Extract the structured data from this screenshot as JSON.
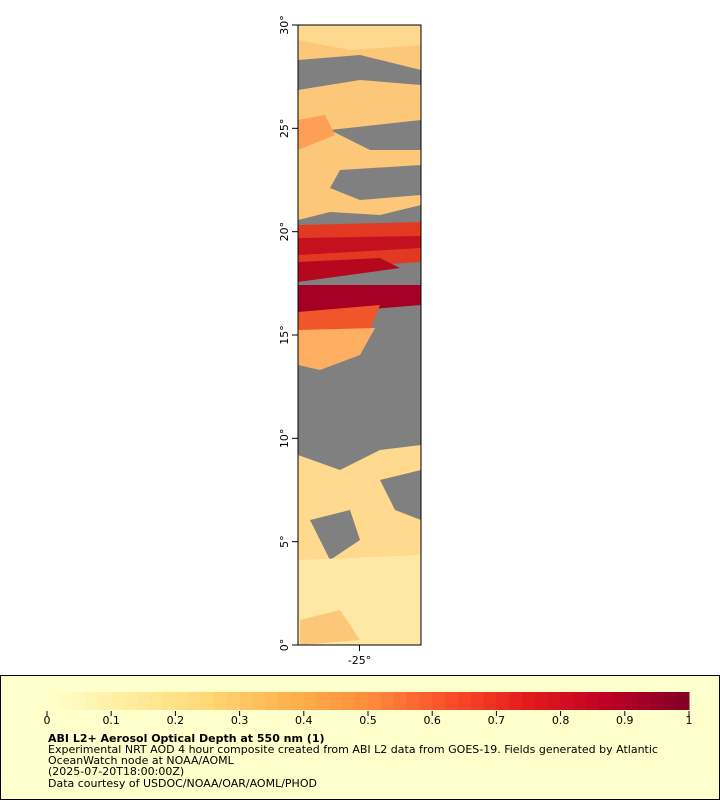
{
  "map": {
    "ylim": [
      0,
      30
    ],
    "yticks": [
      {
        "value": 0,
        "label": "0°"
      },
      {
        "value": 5,
        "label": "5°"
      },
      {
        "value": 10,
        "label": "10°"
      },
      {
        "value": 15,
        "label": "15°"
      },
      {
        "value": 20,
        "label": "20°"
      },
      {
        "value": 25,
        "label": "25°"
      },
      {
        "value": 30,
        "label": "30°"
      }
    ],
    "xlim": [
      -28,
      -22
    ],
    "xticks": [
      {
        "value": -25,
        "label": "-25°"
      }
    ]
  },
  "legend": {
    "colorbar": {
      "lim": [
        0,
        1
      ],
      "ticks": [
        0,
        0.1,
        0.2,
        0.3,
        0.4,
        0.5,
        0.6,
        0.7,
        0.8,
        0.9,
        1
      ],
      "colors": [
        "#ffffcc",
        "#ffeda0",
        "#fed976",
        "#feb24c",
        "#fd8d3c",
        "#fc4e2a",
        "#e31a1c",
        "#bd0026",
        "#800026"
      ]
    },
    "title": "ABI L2+ Aerosol Optical Depth at 550 nm (1)",
    "lines": [
      "Experimental NRT AOD 4 hour composite created from ABI L2 data from GOES-19. Fields generated by Atlantic",
      "OceanWatch node at NOAA/AOML",
      "(2025-07-20T18:00:00Z)",
      "Data courtesy of USDOC/NOAA/OAR/AOML/PHOD"
    ]
  }
}
